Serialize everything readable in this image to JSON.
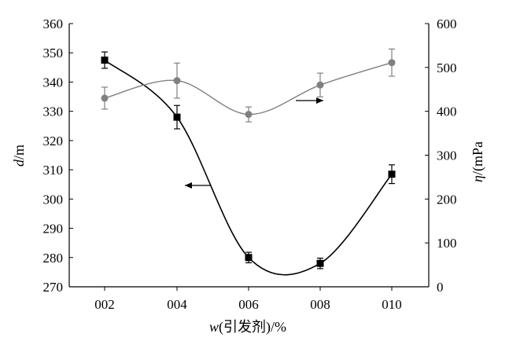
{
  "chart_data": {
    "type": "line",
    "x_categories": [
      "002",
      "004",
      "006",
      "008",
      "010"
    ],
    "xlabel": {
      "italic": "w",
      "rest": "(引发剂)/%"
    },
    "ylabel_left": {
      "italic": "d",
      "rest": "/m"
    },
    "ylabel_right": {
      "italic": "η",
      "rest": "/(mPa"
    },
    "ylim_left": [
      270,
      360
    ],
    "yticks_left": [
      270,
      280,
      290,
      300,
      310,
      320,
      330,
      340,
      350,
      360
    ],
    "ylim_right": [
      0,
      600
    ],
    "yticks_right": [
      0,
      100,
      200,
      300,
      400,
      500,
      600
    ],
    "grid": false,
    "series": [
      {
        "axis": "left",
        "marker": "square",
        "color": "#000000",
        "values": [
          347.5,
          328,
          280,
          278,
          308.5
        ],
        "error": [
          2.8,
          4,
          1.8,
          1.8,
          3.2
        ]
      },
      {
        "axis": "right",
        "marker": "circle",
        "color": "#808080",
        "values": [
          430,
          470,
          393,
          460,
          511
        ],
        "error": [
          25,
          40,
          17,
          27,
          31
        ]
      }
    ],
    "annotations": [
      {
        "arrow": "left",
        "points_to_axis": "left"
      },
      {
        "arrow": "right",
        "points_to_axis": "right"
      }
    ]
  }
}
